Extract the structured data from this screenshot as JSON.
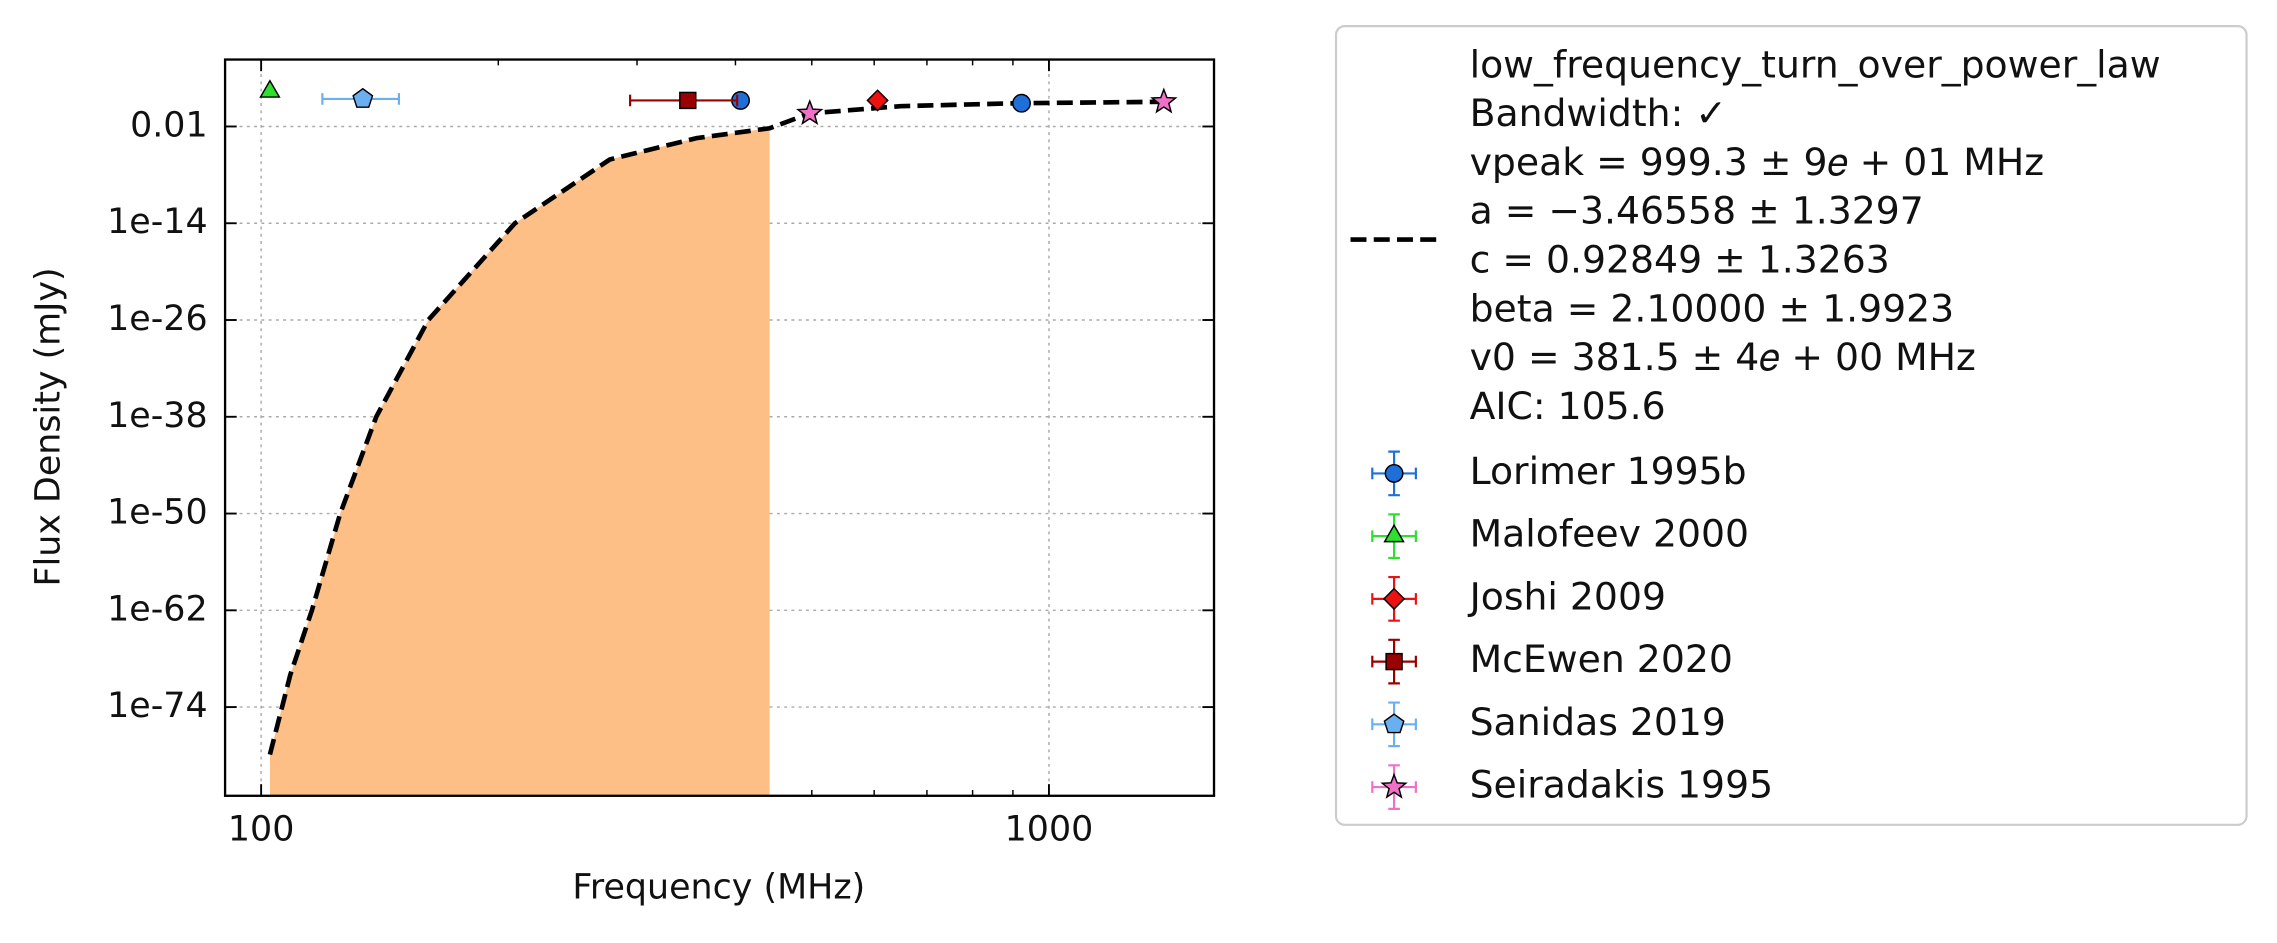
{
  "chart_data": {
    "type": "scatter",
    "xlabel": "Frequency (MHz)",
    "ylabel": "Flux Density (mJy)",
    "xscale": "log",
    "yscale": "log",
    "xlim": [
      90,
      1620
    ],
    "ylim": [
      1e-85,
      2000000.0
    ],
    "xticks": [
      100,
      1000
    ],
    "xminorticks": [
      200,
      300,
      400,
      500,
      600,
      700,
      800,
      900
    ],
    "yticks": [
      0.01,
      1e-14,
      1e-26,
      1e-38,
      1e-50,
      1e-62,
      1e-74
    ],
    "grid": true,
    "legend": "outside right",
    "fit": {
      "label_lines": [
        "low_frequency_turn_over_power_law",
        "Bandwidth: ✓",
        "vpeak = 999.3 ± 9𝑒 + 01 MHz",
        "a = −3.46558 ± 1.3297",
        "c = 0.92849 ± 1.3263",
        "beta = 2.10000 ± 1.9923",
        "v0 = 381.5 ± 4𝑒 + 00 MHz",
        "AIC: 105.6"
      ],
      "color": "#000000",
      "fill_color": "#fdbf86",
      "fill_xlim": [
        102.6,
        442
      ],
      "x": [
        102.6,
        108.9,
        116,
        126,
        140,
        163,
        210,
        277,
        357,
        442,
        497,
        648,
        910,
        1393
      ],
      "values": [
        1.3e-80,
        1e-70,
        1e-62,
        1e-50,
        1e-38,
        1e-26,
        1e-14,
        8e-07,
        0.00036,
        0.006,
        0.42,
        3.3,
        7.6,
        11.5
      ]
    },
    "series": [
      {
        "name": "Lorimer 1995b",
        "color": "#1f6fd8",
        "marker": "circle",
        "x": [
          406,
          923
        ],
        "values": [
          17,
          7.6
        ]
      },
      {
        "name": "Malofeev 2000",
        "color": "#2ee02e",
        "marker": "triangle",
        "x": [
          102.6
        ],
        "values": [
          210
        ]
      },
      {
        "name": "Joshi 2009",
        "color": "#ee1111",
        "marker": "diamond",
        "x": [
          606
        ],
        "values": [
          17
        ]
      },
      {
        "name": "McEwen 2020",
        "color": "#990000",
        "marker": "square",
        "x": [
          348
        ],
        "values": [
          17
        ],
        "xerr": [
          54
        ]
      },
      {
        "name": "Sanidas 2019",
        "color": "#6ab0f0",
        "marker": "pentagon",
        "x": [
          134.6
        ],
        "values": [
          26
        ],
        "xerr": [
          15
        ]
      },
      {
        "name": "Seiradakis 1995",
        "color": "#f070c8",
        "marker": "star",
        "x": [
          497,
          1399
        ],
        "values": [
          0.42,
          11.5
        ]
      }
    ]
  }
}
